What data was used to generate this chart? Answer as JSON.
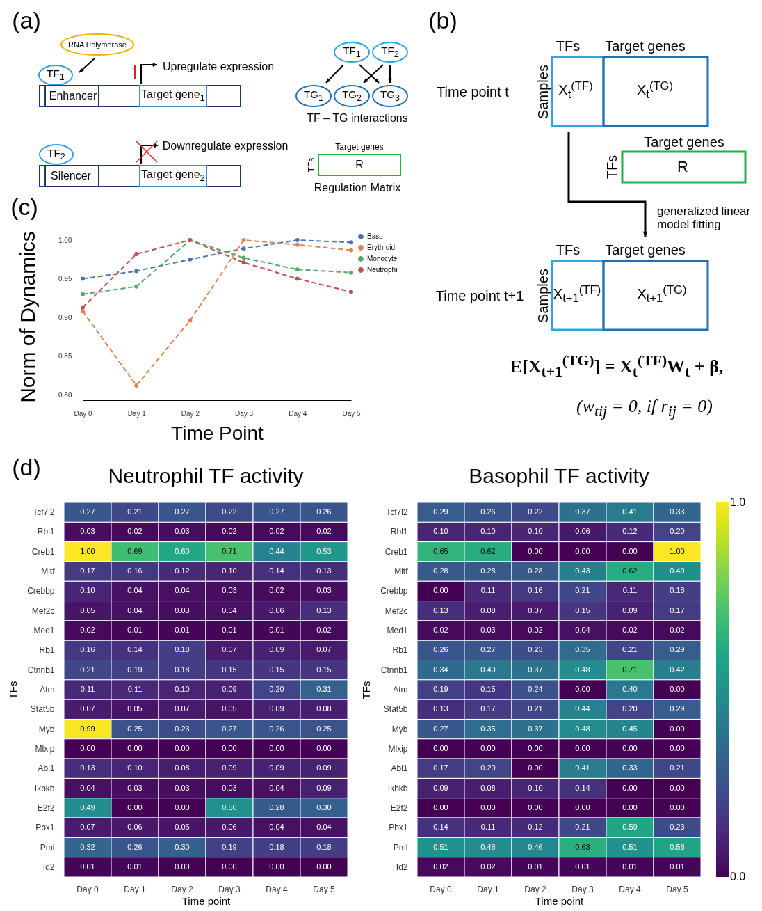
{
  "chart_data": [
    {
      "type": "other",
      "annotations": [
        "(a)",
        "RNA Polymerase",
        "TF$_{1}$",
        "Upregulate expression",
        "Enhancer",
        "Target gene$_{1}$",
        "TF$_{2}$",
        "Downregulate expression",
        "Silencer",
        "Target gene$_{2}$",
        "TF$_{1}$",
        "TF$_{2}$",
        "TG$_{1}$",
        "TG$_{2}$",
        "TG$_{3}$",
        "TF – TG interactions",
        "Target genes",
        "TFs",
        "R",
        "Regulation Matrix"
      ]
    },
    {
      "type": "other",
      "annotations": [
        "(b)",
        "TFs",
        "Target genes",
        "Time point t",
        "Samples",
        "X$_{t}$$^{(TF)}$",
        "X$_{t}$$^{(TG)}$",
        "Target genes",
        "TFs",
        "R",
        "generalized linear model fitting",
        "TFs",
        "Target genes",
        "Time point t+1",
        "Samples",
        "X$_{t+1}$$^{(TF)}$",
        "X$_{t+1}$$^{(TG)}$",
        "E[X$_{t+1}$$^{(TG)}$] = X$_{t}$$^{(TF)}$W$_{t}$ + β,",
        "(w$_{tij}$ = 0, if r$_{ij}$ = 0)"
      ]
    },
    {
      "type": "line",
      "xlabel": "Time Point",
      "ylabel": "Norm of Dynamics",
      "annotations": [
        "(c)"
      ],
      "categories": [
        "Day 0",
        "Day 1",
        "Day 2",
        "Day 3",
        "Day 4",
        "Day 5"
      ],
      "series": [
        {
          "name": "Baso",
          "color": "#4c72b0",
          "values": [
            0.95,
            0.96,
            0.975,
            0.989,
            1.0,
            0.997
          ]
        },
        {
          "name": "Erythroid",
          "color": "#dd8452",
          "values": [
            0.908,
            0.812,
            0.896,
            1.0,
            0.994,
            0.987
          ]
        },
        {
          "name": "Monocyte",
          "color": "#55a868",
          "values": [
            0.93,
            0.94,
            1.0,
            0.977,
            0.962,
            0.958
          ]
        },
        {
          "name": "Neutrophil",
          "color": "#c44e52",
          "values": [
            0.913,
            0.982,
            1.0,
            0.971,
            0.95,
            0.933
          ]
        }
      ],
      "ylim": [
        0.793,
        1.009
      ],
      "yticks": [
        {
          "value": 0.8,
          "label": "0.80"
        },
        {
          "value": 0.85,
          "label": "0.85"
        },
        {
          "value": 0.9,
          "label": "0.90"
        },
        {
          "value": 0.95,
          "label": "0.95"
        },
        {
          "value": 1.0,
          "label": "1.00"
        }
      ],
      "grid": false,
      "legend": "right",
      "marker": "circle",
      "line_style": "dashed"
    },
    {
      "type": "heatmap",
      "title": "Neutrophil TF activity",
      "xlabel": "Time point",
      "ylabel": "TFs",
      "annotations": [
        "(d)"
      ],
      "data_labels": true,
      "categories": [
        "Day 0",
        "Day 1",
        "Day 2",
        "Day 3",
        "Day 4",
        "Day 5"
      ],
      "y_categories": [
        "Tcf7l2",
        "Rbl1",
        "Creb1",
        "Mitf",
        "Crebbp",
        "Mef2c",
        "Med1",
        "Rb1",
        "Ctnnb1",
        "Atm",
        "Stat5b",
        "Myb",
        "Mlxip",
        "Abl1",
        "Ikbkb",
        "E2f2",
        "Pbx1",
        "Pml",
        "Id2"
      ],
      "cell_labels": [
        [
          "0.27",
          "0.21",
          "0.27",
          "0.22",
          "0.27",
          "0.26"
        ],
        [
          "0.03",
          "0.02",
          "0.03",
          "0.02",
          "0.02",
          "0.02"
        ],
        [
          "1.00",
          "0.69",
          "0.60",
          "0.71",
          "0.44",
          "0.53"
        ],
        [
          "0.17",
          "0.16",
          "0.12",
          "0.10",
          "0.14",
          "0.13"
        ],
        [
          "0.10",
          "0.04",
          "0.04",
          "0.03",
          "0.02",
          "0.03"
        ],
        [
          "0.05",
          "0.04",
          "0.03",
          "0.04",
          "0.06",
          "0.13"
        ],
        [
          "0.02",
          "0.01",
          "0.01",
          "0.01",
          "0.01",
          "0.02"
        ],
        [
          "0.16",
          "0.14",
          "0.18",
          "0.07",
          "0.09",
          "0.07"
        ],
        [
          "0.21",
          "0.19",
          "0.18",
          "0.15",
          "0.15",
          "0.15"
        ],
        [
          "0.11",
          "0.11",
          "0.10",
          "0.09",
          "0.20",
          "0.31"
        ],
        [
          "0.07",
          "0.05",
          "0.07",
          "0.05",
          "0.09",
          "0.08"
        ],
        [
          "0.99",
          "0.25",
          "0.23",
          "0.27",
          "0.26",
          "0.25"
        ],
        [
          "0.00",
          "0.00",
          "0.00",
          "0.00",
          "0.00",
          "0.00"
        ],
        [
          "0.13",
          "0.10",
          "0.08",
          "0.09",
          "0.09",
          "0.09"
        ],
        [
          "0.04",
          "0.03",
          "0.03",
          "0.03",
          "0.04",
          "0.09"
        ],
        [
          "0.49",
          "0.00",
          "0.00",
          "0.50",
          "0.28",
          "0.30"
        ],
        [
          "0.07",
          "0.06",
          "0.05",
          "0.06",
          "0.04",
          "0.04"
        ],
        [
          "0.32",
          "0.26",
          "0.30",
          "0.19",
          "0.18",
          "0.18"
        ],
        [
          "0.01",
          "0.01",
          "0.00",
          "0.00",
          "0.00",
          "0.00"
        ]
      ],
      "cells": [
        [
          0.27,
          0.21,
          0.27,
          0.22,
          0.27,
          0.26
        ],
        [
          0.03,
          0.02,
          0.03,
          0.02,
          0.02,
          0.02
        ],
        [
          1.0,
          0.69,
          0.6,
          0.71,
          0.44,
          0.53
        ],
        [
          0.17,
          0.16,
          0.12,
          0.1,
          0.14,
          0.13
        ],
        [
          0.1,
          0.04,
          0.04,
          0.03,
          0.02,
          0.03
        ],
        [
          0.05,
          0.04,
          0.03,
          0.04,
          0.06,
          0.13
        ],
        [
          0.02,
          0.01,
          0.01,
          0.01,
          0.01,
          0.02
        ],
        [
          0.16,
          0.14,
          0.18,
          0.07,
          0.09,
          0.07
        ],
        [
          0.21,
          0.19,
          0.18,
          0.15,
          0.15,
          0.15
        ],
        [
          0.11,
          0.11,
          0.1,
          0.09,
          0.2,
          0.31
        ],
        [
          0.07,
          0.05,
          0.07,
          0.05,
          0.09,
          0.08
        ],
        [
          0.99,
          0.25,
          0.23,
          0.27,
          0.26,
          0.25
        ],
        [
          0.0,
          0.0,
          0.0,
          0.0,
          0.0,
          0.0
        ],
        [
          0.13,
          0.1,
          0.08,
          0.09,
          0.09,
          0.09
        ],
        [
          0.04,
          0.03,
          0.03,
          0.03,
          0.04,
          0.09
        ],
        [
          0.49,
          0.0,
          0.0,
          0.5,
          0.28,
          0.3
        ],
        [
          0.07,
          0.06,
          0.05,
          0.06,
          0.04,
          0.04
        ],
        [
          0.32,
          0.26,
          0.3,
          0.19,
          0.18,
          0.18
        ],
        [
          0.01,
          0.01,
          0.0,
          0.0,
          0.0,
          0.0
        ]
      ]
    },
    {
      "type": "heatmap",
      "title": "Basophil TF activity",
      "xlabel": "Time point",
      "ylabel": "TFs",
      "data_labels": true,
      "categories": [
        "Day 0",
        "Day 1",
        "Day 2",
        "Day 3",
        "Day 4",
        "Day 5"
      ],
      "y_categories": [
        "Tcf7l2",
        "Rbl1",
        "Creb1",
        "Mitf",
        "Crebbp",
        "Mef2c",
        "Med1",
        "Rb1",
        "Ctnnb1",
        "Atm",
        "Stat5b",
        "Myb",
        "Mlxip",
        "Abl1",
        "Ikbkb",
        "E2f2",
        "Pbx1",
        "Pml",
        "Id2"
      ],
      "cell_labels": [
        [
          "0.29",
          "0.26",
          "0.22",
          "0.37",
          "0.41",
          "0.33"
        ],
        [
          "0.10",
          "0.10",
          "0.10",
          "0.06",
          "0.12",
          "0.20"
        ],
        [
          "0.65",
          "0.62",
          "0.00",
          "0.00",
          "0.00",
          "1.00"
        ],
        [
          "0.28",
          "0.28",
          "0.28",
          "0.43",
          "0.62",
          "0.49"
        ],
        [
          "0.00",
          "0.11",
          "0.16",
          "0.21",
          "0.11",
          "0.18"
        ],
        [
          "0.13",
          "0.08",
          "0.07",
          "0.15",
          "0.09",
          "0.17"
        ],
        [
          "0.02",
          "0.03",
          "0.02",
          "0.04",
          "0.02",
          "0.02"
        ],
        [
          "0.26",
          "0.27",
          "0.23",
          "0.35",
          "0.21",
          "0.29"
        ],
        [
          "0.34",
          "0.40",
          "0.37",
          "0.48",
          "0.71",
          "0.42"
        ],
        [
          "0.19",
          "0.15",
          "0.24",
          "0.00",
          "0.40",
          "0.00"
        ],
        [
          "0.13",
          "0.17",
          "0.21",
          "0.44",
          "0.20",
          "0.29"
        ],
        [
          "0.27",
          "0.35",
          "0.37",
          "0.48",
          "0.45",
          "0.00"
        ],
        [
          "0.00",
          "0.00",
          "0.00",
          "0.00",
          "0.00",
          "0.00"
        ],
        [
          "0.17",
          "0.20",
          "0.00",
          "0.41",
          "0.33",
          "0.21"
        ],
        [
          "0.09",
          "0.08",
          "0.10",
          "0.14",
          "0.00",
          "0.00"
        ],
        [
          "0.00",
          "0.00",
          "0.00",
          "0.00",
          "0.00",
          "0.00"
        ],
        [
          "0.14",
          "0.11",
          "0.12",
          "0.21",
          "0.59",
          "0.23"
        ],
        [
          "0.51",
          "0.48",
          "0.46",
          "0.63",
          "0.51",
          "0.58"
        ],
        [
          "0.02",
          "0.02",
          "0.01",
          "0.01",
          "0.01",
          "0.01"
        ]
      ],
      "cells": [
        [
          0.29,
          0.26,
          0.22,
          0.37,
          0.41,
          0.33
        ],
        [
          0.1,
          0.1,
          0.1,
          0.06,
          0.12,
          0.2
        ],
        [
          0.65,
          0.62,
          0.0,
          0.0,
          0.0,
          1.0
        ],
        [
          0.28,
          0.28,
          0.28,
          0.43,
          0.62,
          0.49
        ],
        [
          0.0,
          0.11,
          0.16,
          0.21,
          0.11,
          0.18
        ],
        [
          0.13,
          0.08,
          0.07,
          0.15,
          0.09,
          0.17
        ],
        [
          0.02,
          0.03,
          0.02,
          0.04,
          0.02,
          0.02
        ],
        [
          0.26,
          0.27,
          0.23,
          0.35,
          0.21,
          0.29
        ],
        [
          0.34,
          0.4,
          0.37,
          0.48,
          0.71,
          0.42
        ],
        [
          0.19,
          0.15,
          0.24,
          0.0,
          0.4,
          0.0
        ],
        [
          0.13,
          0.17,
          0.21,
          0.44,
          0.2,
          0.29
        ],
        [
          0.27,
          0.35,
          0.37,
          0.48,
          0.45,
          0.0
        ],
        [
          0.0,
          0.0,
          0.0,
          0.0,
          0.0,
          0.0
        ],
        [
          0.17,
          0.2,
          0.0,
          0.41,
          0.33,
          0.21
        ],
        [
          0.09,
          0.08,
          0.1,
          0.14,
          0.0,
          0.0
        ],
        [
          0.0,
          0.0,
          0.0,
          0.0,
          0.0,
          0.0
        ],
        [
          0.14,
          0.11,
          0.12,
          0.21,
          0.59,
          0.23
        ],
        [
          0.51,
          0.48,
          0.46,
          0.63,
          0.51,
          0.58
        ],
        [
          0.02,
          0.02,
          0.01,
          0.01,
          0.01,
          0.01
        ]
      ],
      "clim": [
        0,
        1
      ],
      "cticks": [
        {
          "value": 0,
          "label": "0.0"
        },
        {
          "value": 1,
          "label": "1.0"
        }
      ]
    }
  ]
}
